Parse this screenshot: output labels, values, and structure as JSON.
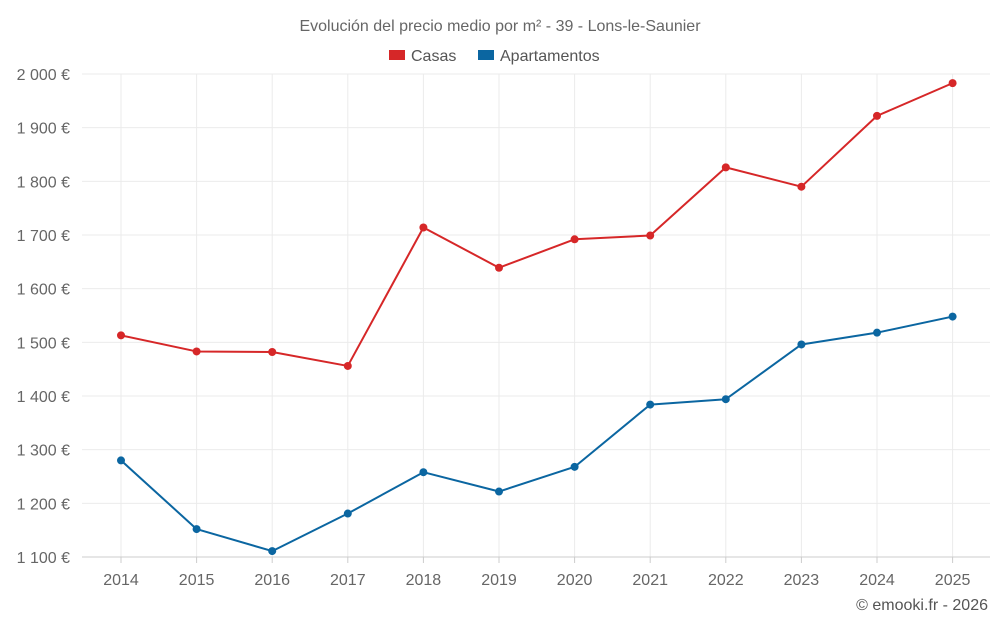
{
  "chart_data": {
    "type": "line",
    "title": "Evolución del precio medio por m² - 39 - Lons-le-Saunier",
    "categories": [
      "2014",
      "2015",
      "2016",
      "2017",
      "2018",
      "2019",
      "2020",
      "2021",
      "2022",
      "2023",
      "2024",
      "2025"
    ],
    "series": [
      {
        "name": "Casas",
        "color": "#d62728",
        "values": [
          1513,
          1483,
          1482,
          1456,
          1714,
          1639,
          1692,
          1699,
          1826,
          1790,
          1922,
          1983
        ]
      },
      {
        "name": "Apartamentos",
        "color": "#0b66a1",
        "values": [
          1280,
          1152,
          1111,
          1181,
          1258,
          1222,
          1268,
          1384,
          1394,
          1496,
          1518,
          1548
        ]
      }
    ],
    "ylim": [
      1100,
      2000
    ],
    "yticks": [
      1100,
      1200,
      1300,
      1400,
      1500,
      1600,
      1700,
      1800,
      1900,
      2000
    ],
    "ytick_labels": [
      "1 100 €",
      "1 200 €",
      "1 300 €",
      "1 400 €",
      "1 500 €",
      "1 600 €",
      "1 700 €",
      "1 800 €",
      "1 900 €",
      "2 000 €"
    ],
    "xlabel": "",
    "ylabel": "",
    "grid": true,
    "legend_position": "top-center"
  },
  "credit": "© emooki.fr - 2026"
}
